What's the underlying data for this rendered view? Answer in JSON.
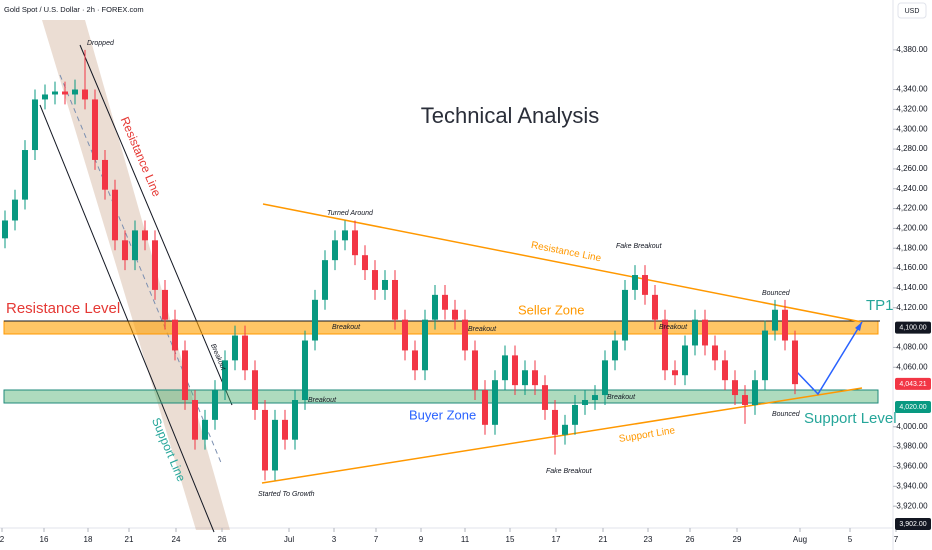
{
  "chart_data": {
    "type": "candlestick",
    "title": "Gold Spot / U.S. Dollar · 2h · FOREX.com",
    "currency": "USD",
    "heading": "Technical Analysis",
    "up_color": "#089981",
    "down_color": "#f23645",
    "open": [
      4190,
      4208,
      4229,
      4279,
      4330,
      4335,
      4338,
      4335,
      4340,
      4330,
      4269,
      4239,
      4188,
      4168,
      4198,
      4188,
      4138,
      4108,
      4077,
      4027,
      3987,
      4007,
      4037,
      4067,
      4092,
      4057,
      4017,
      3956,
      4007,
      3987,
      4027,
      4087,
      4128,
      4168,
      4188,
      4198,
      4173,
      4158,
      4138,
      4148,
      4108,
      4077,
      4057,
      4108,
      4133,
      4118,
      4108,
      4077,
      4037,
      4002,
      4047,
      4072,
      4042,
      4057,
      4042,
      4017,
      3992,
      4002,
      4022,
      4027,
      4032,
      4067,
      4087,
      4138,
      4153,
      4133,
      4108,
      4057,
      4052,
      4082,
      4108,
      4082,
      4067,
      4047,
      4032,
      4022,
      4047,
      4097,
      4118,
      4087
    ],
    "high": [
      4218,
      4239,
      4289,
      4340,
      4345,
      4348,
      4348,
      4350,
      4380,
      4340,
      4279,
      4249,
      4198,
      4208,
      4208,
      4198,
      4148,
      4118,
      4087,
      4037,
      4017,
      4047,
      4077,
      4102,
      4102,
      4067,
      4027,
      4017,
      4017,
      4037,
      4097,
      4138,
      4178,
      4198,
      4208,
      4208,
      4183,
      4168,
      4158,
      4158,
      4118,
      4087,
      4118,
      4143,
      4143,
      4128,
      4118,
      4087,
      4047,
      4057,
      4082,
      4082,
      4067,
      4067,
      4052,
      4027,
      4012,
      4032,
      4037,
      4042,
      4077,
      4097,
      4148,
      4163,
      4163,
      4143,
      4118,
      4067,
      4092,
      4118,
      4118,
      4092,
      4077,
      4057,
      4042,
      4057,
      4107,
      4128,
      4128,
      4097
    ],
    "low": [
      4180,
      4198,
      4219,
      4269,
      4320,
      4325,
      4325,
      4325,
      4320,
      4259,
      4229,
      4178,
      4158,
      4158,
      4178,
      4128,
      4098,
      4067,
      4017,
      3977,
      3977,
      3997,
      4027,
      4057,
      4047,
      4007,
      3946,
      3946,
      3977,
      3977,
      4017,
      4077,
      4118,
      4158,
      4178,
      4163,
      4148,
      4128,
      4128,
      4098,
      4067,
      4047,
      4047,
      4098,
      4108,
      4098,
      4067,
      4027,
      3992,
      3992,
      4037,
      4032,
      4032,
      4032,
      4007,
      3972,
      3982,
      3992,
      4012,
      4017,
      4022,
      4057,
      4077,
      4128,
      4123,
      4098,
      4047,
      4042,
      4042,
      4072,
      4072,
      4057,
      4037,
      4022,
      4003,
      4012,
      4037,
      4087,
      4077,
      4033
    ],
    "close": [
      4208,
      4229,
      4279,
      4330,
      4335,
      4338,
      4335,
      4340,
      4330,
      4269,
      4239,
      4188,
      4168,
      4198,
      4188,
      4138,
      4108,
      4077,
      4027,
      3987,
      4007,
      4037,
      4067,
      4092,
      4057,
      4017,
      3956,
      4007,
      3987,
      4027,
      4087,
      4128,
      4168,
      4188,
      4198,
      4173,
      4158,
      4138,
      4148,
      4108,
      4077,
      4057,
      4108,
      4133,
      4118,
      4108,
      4077,
      4037,
      4002,
      4047,
      4072,
      4042,
      4057,
      4042,
      4017,
      3992,
      4002,
      4022,
      4027,
      4032,
      4067,
      4087,
      4138,
      4153,
      4133,
      4108,
      4057,
      4052,
      4082,
      4108,
      4082,
      4067,
      4047,
      4032,
      4022,
      4047,
      4097,
      4118,
      4087,
      4043
    ],
    "ylim": [
      3900,
      4400
    ],
    "yticks": [
      {
        "value": 3920,
        "label": "3,920.00"
      },
      {
        "value": 3940,
        "label": "3,940.00"
      },
      {
        "value": 3960,
        "label": "3,960.00"
      },
      {
        "value": 3980,
        "label": "3,980.00"
      },
      {
        "value": 4000,
        "label": "4,000.00"
      },
      {
        "value": 4060,
        "label": "4,060.00"
      },
      {
        "value": 4080,
        "label": "4,080.00"
      },
      {
        "value": 4120,
        "label": "4,120.00"
      },
      {
        "value": 4140,
        "label": "4,140.00"
      },
      {
        "value": 4160,
        "label": "4,160.00"
      },
      {
        "value": 4180,
        "label": "4,180.00"
      },
      {
        "value": 4200,
        "label": "4,200.00"
      },
      {
        "value": 4220,
        "label": "4,220.00"
      },
      {
        "value": 4240,
        "label": "4,240.00"
      },
      {
        "value": 4260,
        "label": "4,260.00"
      },
      {
        "value": 4280,
        "label": "4,280.00"
      },
      {
        "value": 4300,
        "label": "4,300.00"
      },
      {
        "value": 4320,
        "label": "4,320.00"
      },
      {
        "value": 4340,
        "label": "4,340.00"
      },
      {
        "value": 4380,
        "label": "4,380.00"
      }
    ],
    "xlim": [
      0,
      89.3
    ],
    "xticks": [
      {
        "value": 0.2,
        "label": "2"
      },
      {
        "value": 4.4,
        "label": "16"
      },
      {
        "value": 8.8,
        "label": "18"
      },
      {
        "value": 12.9,
        "label": "21"
      },
      {
        "value": 17.6,
        "label": "24"
      },
      {
        "value": 22.2,
        "label": "26"
      },
      {
        "value": 28.9,
        "label": "Jul"
      },
      {
        "value": 33.4,
        "label": "3"
      },
      {
        "value": 37.6,
        "label": "7"
      },
      {
        "value": 42.1,
        "label": "9"
      },
      {
        "value": 46.5,
        "label": "11"
      },
      {
        "value": 51,
        "label": "15"
      },
      {
        "value": 55.6,
        "label": "17"
      },
      {
        "value": 60.3,
        "label": "21"
      },
      {
        "value": 64.8,
        "label": "23"
      },
      {
        "value": 69,
        "label": "26"
      },
      {
        "value": 73.7,
        "label": "29"
      },
      {
        "value": 80,
        "label": "Aug"
      },
      {
        "value": 85,
        "label": "5"
      },
      {
        "value": 89.6,
        "label": "7"
      }
    ],
    "price_labels": [
      {
        "value": 4100,
        "label": "4,100.00",
        "color": "#131722"
      },
      {
        "value": 4043.21,
        "label": "4,043.21",
        "color": "#f23645"
      },
      {
        "value": 4020,
        "label": "4,020.00",
        "color": "#089981"
      },
      {
        "value": 3902,
        "label": "3,902.00",
        "color": "#131722"
      }
    ],
    "annotations": [
      "Dropped",
      "Resistance Line",
      "Support Line",
      "Resistance Level",
      "Seller Zone",
      "Buyer Zone",
      "Support Level",
      "TP1",
      "Turned Around",
      "Resistance Line",
      "Fake Breakout",
      "Fake Breakout",
      "Bounced",
      "Bounced",
      "Breakout",
      "Breakout",
      "Breakout",
      "Breakout",
      "Breakout",
      "Breakout",
      "Support Line",
      "Started To Growth"
    ]
  }
}
